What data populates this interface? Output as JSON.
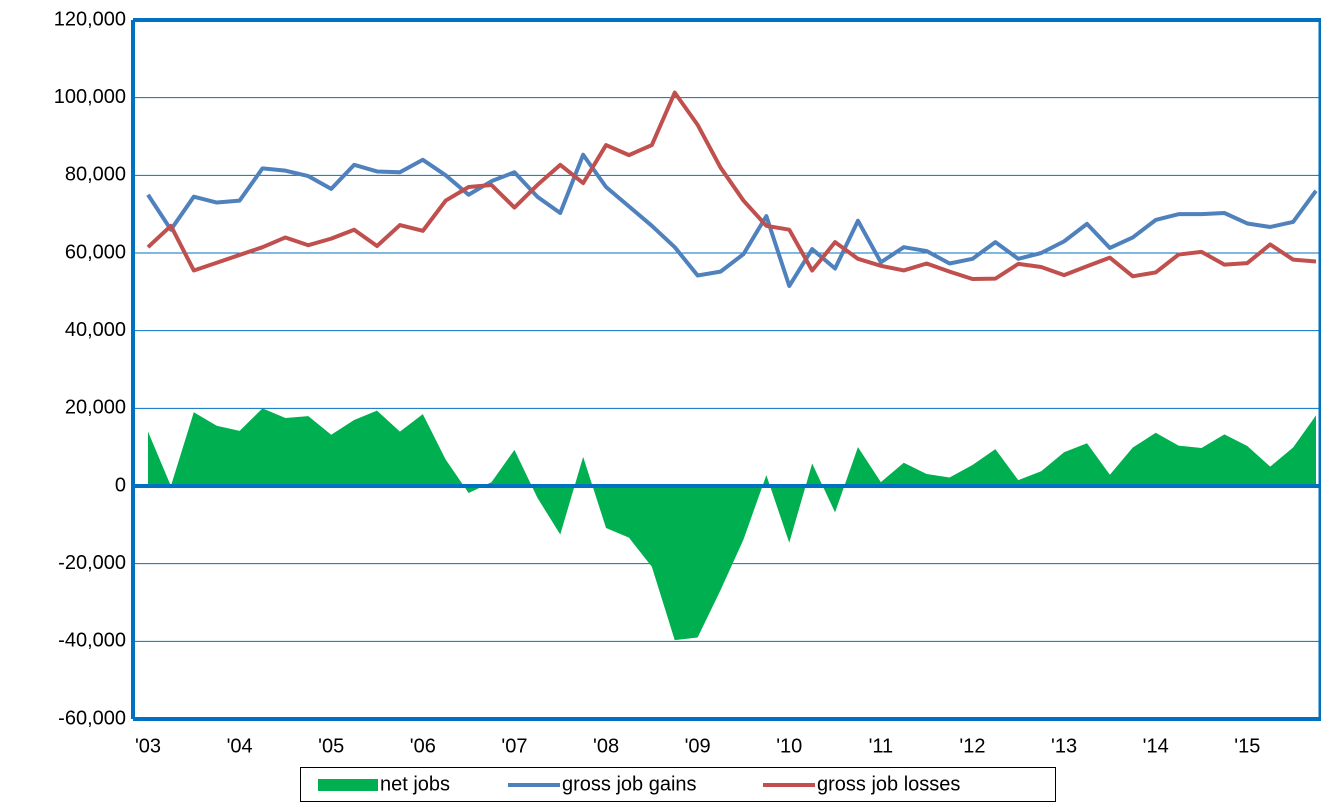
{
  "chart_data": {
    "type": "line",
    "categories": [
      "'03",
      null,
      null,
      null,
      "'04",
      null,
      null,
      null,
      "'05",
      null,
      null,
      null,
      "'06",
      null,
      null,
      null,
      "'07",
      null,
      null,
      null,
      "'08",
      null,
      null,
      null,
      "'09",
      null,
      null,
      null,
      "'10",
      null,
      null,
      null,
      "'11",
      null,
      null,
      null,
      "'12",
      null,
      null,
      null,
      "'13",
      null,
      null,
      null,
      "'14",
      null,
      null,
      null,
      "'15",
      null,
      null,
      null
    ],
    "series": [
      {
        "name": "net jobs",
        "type": "area",
        "color": "#00b050",
        "values": [
          14000,
          0,
          19000,
          15500,
          14200,
          20000,
          17500,
          18000,
          13200,
          17000,
          19400,
          14000,
          18500,
          6800,
          -1800,
          1000,
          9300,
          -3000,
          -12500,
          7500,
          -10800,
          -13300,
          -20800,
          -39700,
          -39000,
          -26800,
          -13800,
          2800,
          -14600,
          5800,
          -6800,
          10000,
          1000,
          6000,
          3100,
          2200,
          5400,
          9500,
          1500,
          3800,
          8700,
          11000,
          2900,
          9900,
          13700,
          10400,
          9800,
          13300,
          10300,
          5000,
          9900,
          18200
        ]
      },
      {
        "name": "gross job gains",
        "type": "line",
        "color": "#4f81bd",
        "values": [
          75000,
          66000,
          74500,
          73000,
          73500,
          81800,
          81200,
          79800,
          76500,
          82700,
          81000,
          80800,
          84000,
          80000,
          75000,
          78500,
          80800,
          74500,
          70300,
          85300,
          77000,
          72000,
          67000,
          61500,
          54200,
          55200,
          59700,
          69500,
          51500,
          61000,
          56000,
          68300,
          57600,
          61500,
          60500,
          57300,
          58500,
          62800,
          58500,
          60000,
          63000,
          67500,
          61300,
          64000,
          68500,
          70000,
          70000,
          70300,
          67600,
          66700,
          68000,
          76000
        ]
      },
      {
        "name": "gross job losses",
        "type": "line",
        "color": "#c0504d",
        "values": [
          61500,
          67000,
          55500,
          57500,
          59500,
          61500,
          64000,
          62000,
          63700,
          66000,
          61800,
          67200,
          65700,
          73500,
          77000,
          77500,
          71700,
          77500,
          82700,
          78000,
          87800,
          85200,
          87800,
          101300,
          93000,
          82000,
          73500,
          67000,
          66000,
          55500,
          62800,
          58500,
          56700,
          55500,
          57300,
          55200,
          53300,
          53400,
          57200,
          56400,
          54300,
          56600,
          58800,
          54000,
          55000,
          59600,
          60300,
          57000,
          57400,
          62200,
          58300,
          57800
        ]
      }
    ],
    "ylim": [
      -60000,
      120000
    ],
    "yticks": [
      {
        "value": -60000,
        "label": "-60,000"
      },
      {
        "value": -40000,
        "label": "-40,000"
      },
      {
        "value": -20000,
        "label": "-20,000"
      },
      0,
      {
        "value": 20000,
        "label": "20,000"
      },
      {
        "value": 40000,
        "label": "40,000"
      },
      {
        "value": 60000,
        "label": "60,000"
      },
      {
        "value": 80000,
        "label": "80,000"
      },
      {
        "value": 100000,
        "label": "100,000"
      },
      {
        "value": 120000,
        "label": "120,000"
      }
    ],
    "grid": true,
    "axis_color": "#0070c0",
    "legend": "bottom"
  }
}
